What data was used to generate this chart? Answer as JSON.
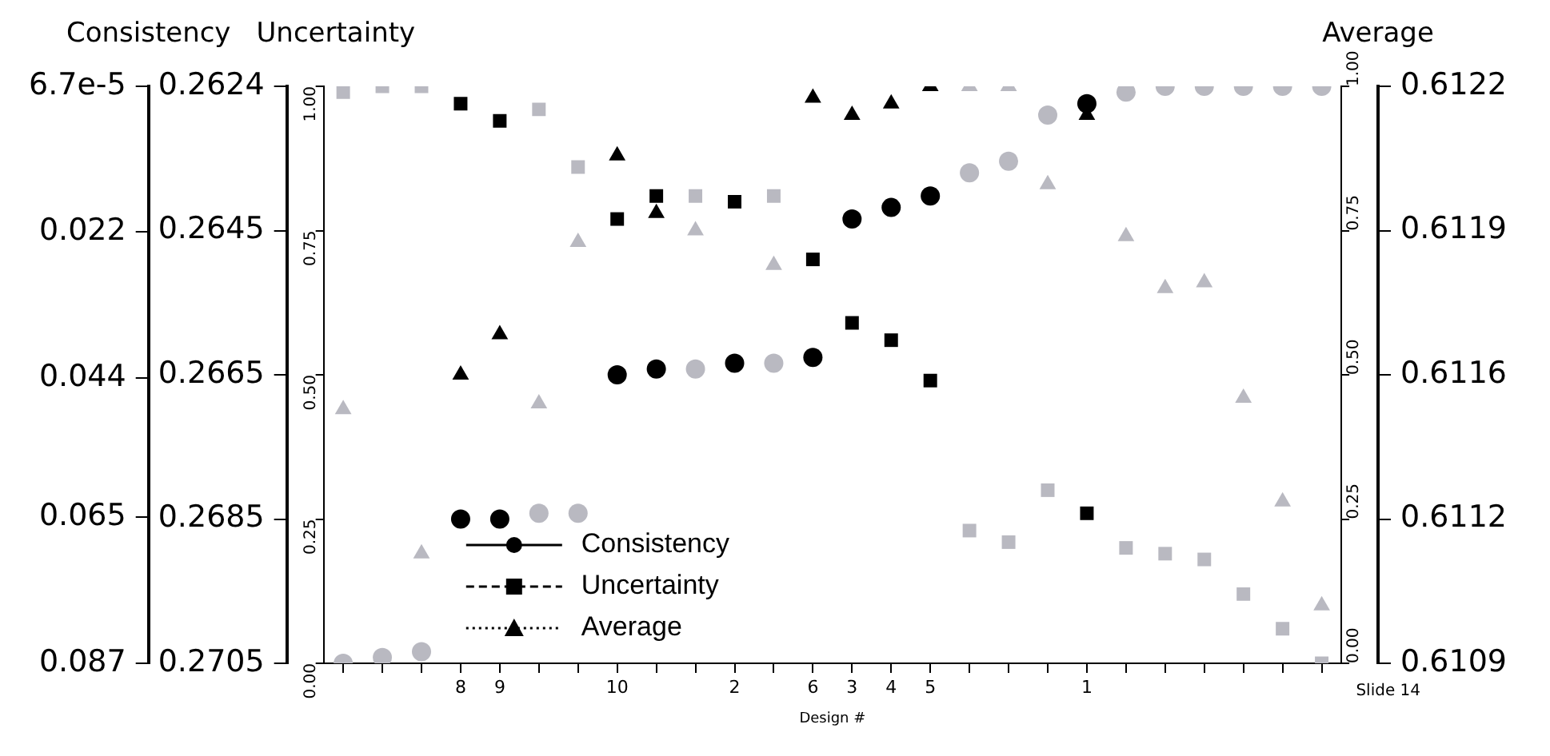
{
  "chart_data": {
    "type": "scatter",
    "xlabel": "Design #",
    "categories": [
      null,
      null,
      null,
      "8",
      "9",
      null,
      null,
      "10",
      null,
      null,
      "2",
      null,
      "6",
      "3",
      "4",
      "5",
      null,
      null,
      null,
      "1",
      null,
      null,
      null,
      null,
      null,
      null
    ],
    "series": [
      {
        "name": "Consistency",
        "marker": "circle",
        "line_style": "solid",
        "color": "#000000",
        "colors": [
          "#b9b9c1",
          "#b9b9c1",
          "#b9b9c1",
          "#000000",
          "#000000",
          "#b9b9c1",
          "#b9b9c1",
          "#000000",
          "#000000",
          "#b9b9c1",
          "#000000",
          "#b9b9c1",
          "#000000",
          "#000000",
          "#000000",
          "#000000",
          "#b9b9c1",
          "#b9b9c1",
          "#b9b9c1",
          "#000000",
          "#b9b9c1",
          "#b9b9c1",
          "#b9b9c1",
          "#b9b9c1",
          "#b9b9c1",
          "#b9b9c1"
        ],
        "values": [
          0.0,
          0.01,
          0.02,
          0.25,
          0.25,
          0.26,
          0.26,
          0.5,
          0.51,
          0.51,
          0.52,
          0.52,
          0.53,
          0.77,
          0.79,
          0.81,
          0.85,
          0.87,
          0.95,
          0.97,
          0.99,
          1.0,
          1.0,
          1.0,
          1.0,
          1.0
        ]
      },
      {
        "name": "Uncertainty",
        "marker": "square",
        "line_style": "dashed",
        "color": "#000000",
        "colors": [
          "#b9b9c1",
          "#b9b9c1",
          "#b9b9c1",
          "#000000",
          "#000000",
          "#b9b9c1",
          "#b9b9c1",
          "#000000",
          "#000000",
          "#b9b9c1",
          "#000000",
          "#b9b9c1",
          "#000000",
          "#000000",
          "#000000",
          "#000000",
          "#b9b9c1",
          "#b9b9c1",
          "#b9b9c1",
          "#000000",
          "#b9b9c1",
          "#b9b9c1",
          "#b9b9c1",
          "#b9b9c1",
          "#b9b9c1",
          "#b9b9c1"
        ],
        "values": [
          0.99,
          1.0,
          1.0,
          0.97,
          0.94,
          0.96,
          0.86,
          0.77,
          0.81,
          0.81,
          0.8,
          0.81,
          0.7,
          0.59,
          0.56,
          0.49,
          0.23,
          0.21,
          0.3,
          0.26,
          0.2,
          0.19,
          0.18,
          0.12,
          0.06,
          0.0
        ]
      },
      {
        "name": "Average",
        "marker": "triangle",
        "line_style": "dotted",
        "color": "#000000",
        "colors": [
          "#b9b9c1",
          "#b9b9c1",
          "#b9b9c1",
          "#000000",
          "#000000",
          "#b9b9c1",
          "#b9b9c1",
          "#000000",
          "#000000",
          "#b9b9c1",
          "#000000",
          "#b9b9c1",
          "#000000",
          "#000000",
          "#000000",
          "#000000",
          "#b9b9c1",
          "#b9b9c1",
          "#b9b9c1",
          "#000000",
          "#b9b9c1",
          "#b9b9c1",
          "#b9b9c1",
          "#b9b9c1",
          "#b9b9c1",
          "#b9b9c1"
        ],
        "values": [
          0.44,
          null,
          0.19,
          0.5,
          0.57,
          0.45,
          0.73,
          0.88,
          0.78,
          0.75,
          null,
          0.69,
          0.98,
          0.95,
          0.97,
          1.0,
          1.0,
          1.0,
          0.83,
          0.95,
          0.74,
          0.65,
          0.66,
          0.46,
          0.28,
          0.1
        ]
      }
    ],
    "ylim": [
      0,
      1
    ],
    "yticks": [
      {
        "value": 0,
        "label": "0.00"
      },
      {
        "value": 0.25,
        "label": "0.25"
      },
      {
        "value": 0.5,
        "label": "0.50"
      },
      {
        "value": 0.75,
        "label": "0.75"
      },
      {
        "value": 1,
        "label": "1.00"
      }
    ],
    "y2lim": [
      0,
      1
    ],
    "y2ticks": [
      {
        "value": 0,
        "label": "0.00"
      },
      {
        "value": 0.25,
        "label": "0.25"
      },
      {
        "value": 0.5,
        "label": "0.50"
      },
      {
        "value": 0.75,
        "label": "0.75"
      },
      {
        "value": 1,
        "label": "1.00"
      }
    ],
    "y3label": "Consistency",
    "y3lim": [
      0.087,
      6.7e-05
    ],
    "y3ticks": [
      0.087,
      0.065,
      0.044,
      0.022,
      {
        "value": 6.7e-05,
        "label": "6.7e-5"
      }
    ],
    "legend": "bottom left",
    "annotations": [
      "Uncertainty",
      "0.2624",
      "0.2645",
      "0.2665",
      "0.2685",
      "0.2705",
      "Average",
      "0.6122",
      "0.6119",
      "0.6116",
      "0.6112",
      "0.6109",
      "Slide 14"
    ]
  }
}
